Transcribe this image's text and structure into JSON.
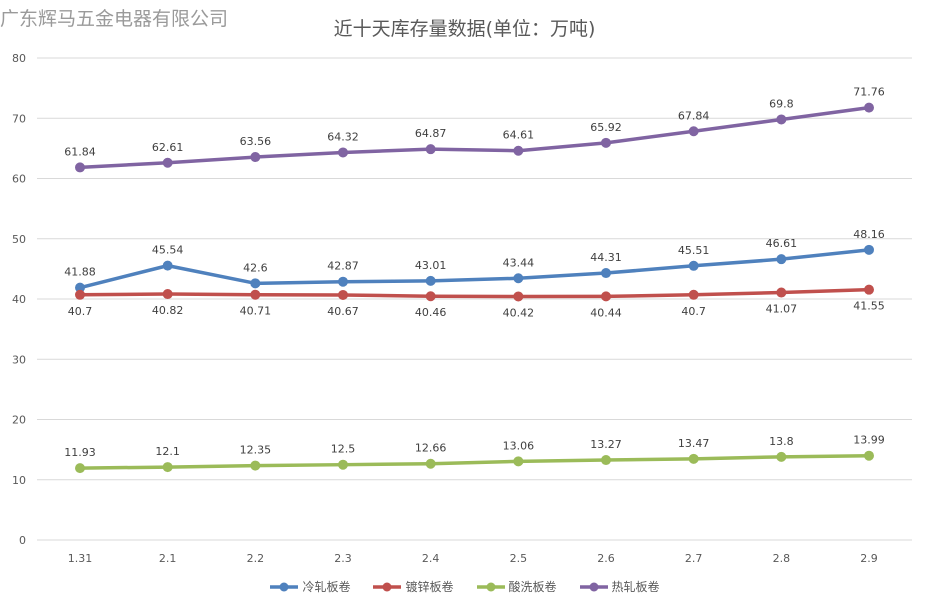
{
  "watermark": "广东辉马五金电器有限公司",
  "chart_data": {
    "type": "line",
    "title": "近十天库存量数据(单位：万吨)",
    "xlabel": "",
    "ylabel": "",
    "categories": [
      "1.31",
      "2.1",
      "2.2",
      "2.3",
      "2.4",
      "2.5",
      "2.6",
      "2.7",
      "2.8",
      "2.9"
    ],
    "ylim": [
      0,
      80
    ],
    "yticks": [
      0,
      10,
      20,
      30,
      40,
      50,
      60,
      70,
      80
    ],
    "grid": true,
    "legend_position": "bottom",
    "series": [
      {
        "name": "冷轧板卷",
        "color": "#4f81bd",
        "label_pos": "above",
        "values": [
          41.88,
          45.54,
          42.6,
          42.87,
          43.01,
          43.44,
          44.31,
          45.51,
          46.61,
          48.16
        ]
      },
      {
        "name": "镀锌板卷",
        "color": "#c0504d",
        "label_pos": "below",
        "values": [
          40.7,
          40.82,
          40.71,
          40.67,
          40.46,
          40.42,
          40.44,
          40.7,
          41.07,
          41.55
        ]
      },
      {
        "name": "酸洗板卷",
        "color": "#9bbb59",
        "label_pos": "above",
        "values": [
          11.93,
          12.1,
          12.35,
          12.5,
          12.66,
          13.06,
          13.27,
          13.47,
          13.8,
          13.99
        ]
      },
      {
        "name": "热轧板卷",
        "color": "#8064a2",
        "label_pos": "above",
        "values": [
          61.84,
          62.61,
          63.56,
          64.32,
          64.87,
          64.61,
          65.92,
          67.84,
          69.8,
          71.76
        ]
      }
    ]
  }
}
